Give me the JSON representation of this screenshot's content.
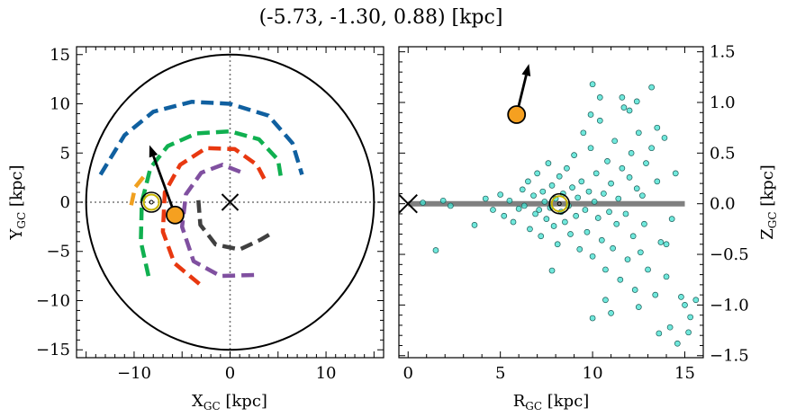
{
  "chart_data": [
    {
      "type": "scatter",
      "title": "(-5.73, -1.30, 0.88) [kpc]",
      "xlabel": "X",
      "xlabel_sub": "GC",
      "xlabel_unit": " [kpc]",
      "ylabel": "Y",
      "ylabel_sub": "GC",
      "ylabel_unit": " [kpc]",
      "xlim": [
        -16,
        16
      ],
      "ylim": [
        -15.8,
        15.8
      ],
      "xticks": [
        -10,
        0,
        10
      ],
      "yticks": [
        -15,
        -10,
        -5,
        0,
        5,
        10,
        15
      ],
      "boundary_circle_radius": 15,
      "crosshair": {
        "x": 0,
        "y": 0
      },
      "spiral_arms": [
        {
          "color": "#1060a0",
          "points": [
            [
              -13.5,
              2.8
            ],
            [
              -11,
              6.8
            ],
            [
              -8,
              9.2
            ],
            [
              -4,
              10.2
            ],
            [
              0,
              10.0
            ],
            [
              4,
              8.8
            ],
            [
              6.5,
              6.0
            ],
            [
              7.5,
              2.8
            ]
          ]
        },
        {
          "color": "#10b050",
          "points": [
            [
              -8.5,
              -7.5
            ],
            [
              -9.3,
              -4
            ],
            [
              -9.2,
              0
            ],
            [
              -8.3,
              3.5
            ],
            [
              -6.5,
              5.7
            ],
            [
              -3.5,
              7.0
            ],
            [
              0,
              7.2
            ],
            [
              3,
              6.4
            ],
            [
              5,
              4.3
            ],
            [
              5.3,
              2.5
            ]
          ]
        },
        {
          "color": "#e83810",
          "points": [
            [
              -3.2,
              -8.3
            ],
            [
              -5.8,
              -6.2
            ],
            [
              -7.0,
              -3
            ],
            [
              -6.8,
              1
            ],
            [
              -5.2,
              3.8
            ],
            [
              -2.5,
              5.5
            ],
            [
              0.5,
              5.4
            ],
            [
              2.8,
              3.8
            ],
            [
              3.6,
              2.3
            ]
          ]
        },
        {
          "color": "#8050a0",
          "points": [
            [
              2.5,
              -7.4
            ],
            [
              -1,
              -7.5
            ],
            [
              -3.8,
              -6
            ],
            [
              -5.0,
              -2.5
            ],
            [
              -4.6,
              0.8
            ],
            [
              -3.0,
              3
            ],
            [
              -0.8,
              3.8
            ],
            [
              1.3,
              3.0
            ]
          ]
        },
        {
          "color": "#404040",
          "points": [
            [
              -3.3,
              0.2
            ],
            [
              -3.1,
              -2.3
            ],
            [
              -1.5,
              -4.3
            ],
            [
              1,
              -4.8
            ],
            [
              3.2,
              -3.8
            ],
            [
              4.6,
              -3.0
            ]
          ]
        },
        {
          "color": "#f0a020",
          "points": [
            [
              -10.3,
              -0.3
            ],
            [
              -9.9,
              1.5
            ],
            [
              -9.0,
              2.6
            ]
          ]
        }
      ],
      "cluster": {
        "x": -8.2,
        "y": 0.0
      },
      "star": {
        "x": -5.73,
        "y": -1.3,
        "color": "#f5a020"
      },
      "velocity_arrow": {
        "from": [
          -5.73,
          -1.3
        ],
        "to": [
          -8.4,
          5.8
        ]
      }
    },
    {
      "type": "scatter",
      "xlabel": "R",
      "xlabel_sub": "GC",
      "xlabel_unit": " [kpc]",
      "ylabel": "Z",
      "ylabel_sub": "GC",
      "ylabel_unit": " [kpc]",
      "xlim": [
        -0.5,
        16
      ],
      "ylim": [
        -1.52,
        1.55
      ],
      "xticks": [
        0,
        5,
        10,
        15
      ],
      "yticks": [
        -1.5,
        -1.0,
        -0.5,
        0.0,
        0.5,
        1.0,
        1.5
      ],
      "ytick_labels": [
        "−1.5",
        "−1.0",
        "−0.5",
        "0.0",
        "0.5",
        "1.0",
        "1.5"
      ],
      "disk_line": {
        "x": [
          0,
          15
        ],
        "y": 0
      },
      "gc_marker": {
        "x": 0,
        "y": 0
      },
      "cluster": {
        "x": 8.2,
        "y": 0.0
      },
      "star": {
        "x": 5.88,
        "y": 0.88,
        "color": "#f5a020"
      },
      "velocity_arrow": {
        "from": [
          5.88,
          0.88
        ],
        "to": [
          6.55,
          1.38
        ]
      },
      "point_color": "#40e0d0",
      "points": [
        [
          0.8,
          0.01
        ],
        [
          1.5,
          -0.46
        ],
        [
          1.9,
          0.03
        ],
        [
          2.3,
          -0.02
        ],
        [
          3.6,
          -0.21
        ],
        [
          4.2,
          0.05
        ],
        [
          4.6,
          -0.06
        ],
        [
          5.0,
          0.09
        ],
        [
          5.2,
          -0.12
        ],
        [
          5.5,
          0.03
        ],
        [
          5.7,
          -0.18
        ],
        [
          6.0,
          -0.05
        ],
        [
          6.2,
          0.14
        ],
        [
          6.3,
          -0.02
        ],
        [
          6.5,
          0.22
        ],
        [
          6.6,
          -0.25
        ],
        [
          6.8,
          0.08
        ],
        [
          6.9,
          -0.1
        ],
        [
          7.0,
          0.3
        ],
        [
          7.1,
          -0.06
        ],
        [
          7.2,
          -0.32
        ],
        [
          7.3,
          0.12
        ],
        [
          7.4,
          0.02
        ],
        [
          7.5,
          -0.15
        ],
        [
          7.6,
          0.4
        ],
        [
          7.7,
          -0.04
        ],
        [
          7.8,
          0.18
        ],
        [
          7.9,
          -0.22
        ],
        [
          8.0,
          0.05
        ],
        [
          8.1,
          -0.4
        ],
        [
          8.2,
          0.27
        ],
        [
          8.3,
          -0.08
        ],
        [
          8.4,
          0.1
        ],
        [
          8.5,
          -0.18
        ],
        [
          8.6,
          0.35
        ],
        [
          8.7,
          -0.02
        ],
        [
          8.8,
          -0.3
        ],
        [
          8.9,
          0.16
        ],
        [
          9.0,
          0.48
        ],
        [
          9.1,
          -0.12
        ],
        [
          9.2,
          0.06
        ],
        [
          9.3,
          -0.45
        ],
        [
          9.4,
          0.22
        ],
        [
          9.5,
          0.7
        ],
        [
          9.6,
          -0.06
        ],
        [
          9.7,
          -0.28
        ],
        [
          9.8,
          0.12
        ],
        [
          9.9,
          0.55
        ],
        [
          10.0,
          -0.52
        ],
        [
          10.1,
          0.02
        ],
        [
          10.2,
          0.3
        ],
        [
          10.3,
          -0.14
        ],
        [
          10.4,
          0.82
        ],
        [
          10.5,
          -0.36
        ],
        [
          10.6,
          0.1
        ],
        [
          10.7,
          -0.65
        ],
        [
          10.8,
          0.42
        ],
        [
          10.9,
          -0.08
        ],
        [
          11.0,
          0.2
        ],
        [
          11.1,
          -0.44
        ],
        [
          11.2,
          0.62
        ],
        [
          11.3,
          -0.2
        ],
        [
          11.4,
          0.05
        ],
        [
          11.5,
          -0.75
        ],
        [
          11.6,
          0.35
        ],
        [
          11.7,
          0.95
        ],
        [
          11.8,
          -0.1
        ],
        [
          11.9,
          -0.55
        ],
        [
          12.0,
          0.26
        ],
        [
          12.1,
          0.5
        ],
        [
          12.2,
          -0.32
        ],
        [
          12.3,
          -0.85
        ],
        [
          12.4,
          0.15
        ],
        [
          12.5,
          0.7
        ],
        [
          12.6,
          -0.48
        ],
        [
          12.7,
          0.08
        ],
        [
          12.8,
          -0.2
        ],
        [
          12.9,
          0.4
        ],
        [
          13.0,
          -0.65
        ],
        [
          13.2,
          0.55
        ],
        [
          13.4,
          -0.9
        ],
        [
          13.5,
          0.22
        ],
        [
          13.7,
          -0.38
        ],
        [
          13.9,
          0.65
        ],
        [
          14.0,
          -0.72
        ],
        [
          14.3,
          -0.15
        ],
        [
          14.5,
          0.3
        ],
        [
          14.8,
          -0.92
        ],
        [
          15.0,
          -1.0
        ],
        [
          15.3,
          -1.12
        ],
        [
          15.6,
          -0.95
        ],
        [
          10.0,
          1.18
        ],
        [
          10.4,
          1.05
        ],
        [
          9.9,
          0.88
        ],
        [
          12.0,
          0.92
        ],
        [
          10.7,
          -0.95
        ],
        [
          10.0,
          -1.13
        ],
        [
          11.0,
          -1.08
        ],
        [
          12.5,
          -1.02
        ],
        [
          13.6,
          -1.28
        ],
        [
          14.2,
          -1.22
        ],
        [
          14.6,
          -1.38
        ],
        [
          15.2,
          -1.27
        ],
        [
          11.6,
          1.05
        ],
        [
          12.4,
          1.01
        ],
        [
          13.2,
          1.15
        ],
        [
          13.5,
          0.75
        ],
        [
          7.8,
          -0.66
        ],
        [
          14.0,
          -0.4
        ]
      ]
    }
  ]
}
